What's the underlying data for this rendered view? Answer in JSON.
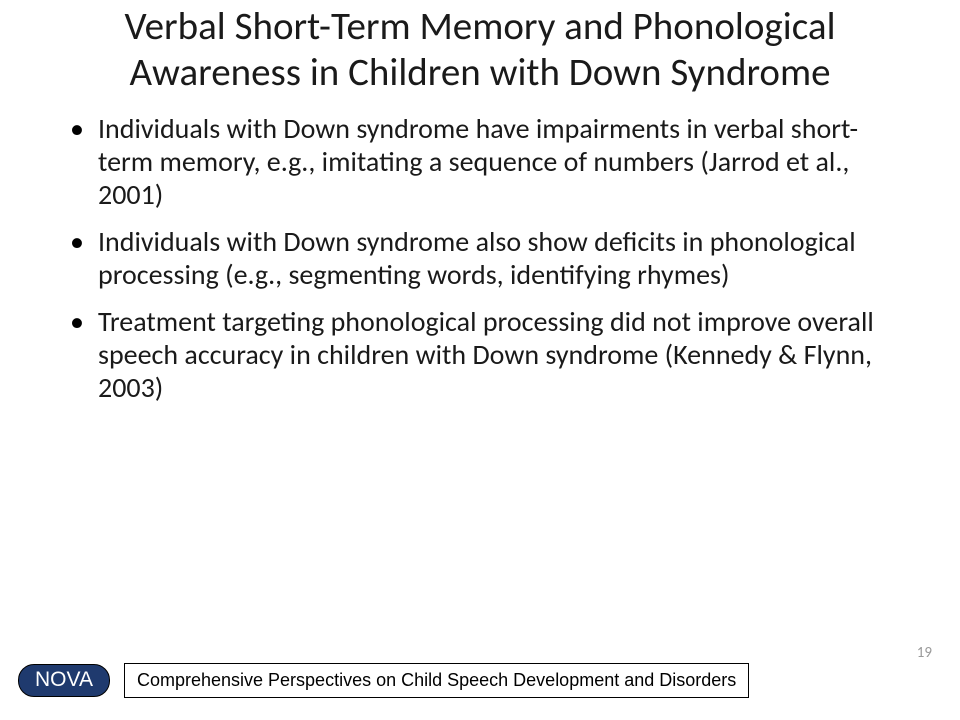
{
  "slide": {
    "title": "Verbal Short-Term Memory and Phonological Awareness in Children with Down Syndrome",
    "bullets": [
      "Individuals with Down syndrome have impairments in verbal short-term memory, e.g., imitating a sequence of numbers (Jarrod et al., 2001)",
      "Individuals with Down syndrome also show deficits in phonological processing (e.g., segmenting words, identifying rhymes)",
      "Treatment targeting phonological processing did not improve overall speech accuracy in children with Down syndrome (Kennedy & Flynn, 2003)"
    ],
    "footer": {
      "badge": "NOVA",
      "text": "Comprehensive Perspectives on Child Speech Development and Disorders"
    },
    "page_number": "19"
  },
  "styling": {
    "background_color": "#ffffff",
    "title_fontsize": 39,
    "title_color": "#1a1a1a",
    "body_fontsize": 28,
    "body_color": "#1a1a1a",
    "bullet_color": "#000000",
    "badge_bg": "#1f3a6e",
    "badge_text_color": "#ffffff",
    "badge_fontsize": 21,
    "footer_text_fontsize": 18,
    "footer_border_color": "#000000",
    "page_number_color": "#9a9a9a",
    "page_number_fontsize": 15,
    "font_family": "Calibri"
  }
}
